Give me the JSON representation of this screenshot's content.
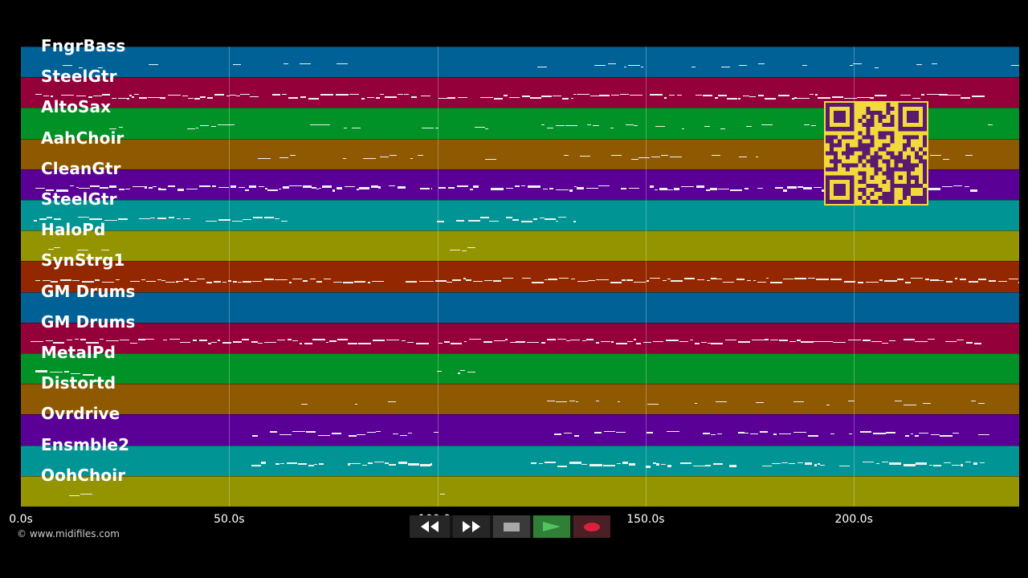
{
  "tracks": [
    {
      "name": "FngrBass",
      "color": "#006196"
    },
    {
      "name": "SteelGtr",
      "color": "#93003a"
    },
    {
      "name": "AltoSax",
      "color": "#009127"
    },
    {
      "name": "AahChoir",
      "color": "#8e5900"
    },
    {
      "name": "CleanGtr",
      "color": "#5a0096"
    },
    {
      "name": "SteelGtr",
      "color": "#009494"
    },
    {
      "name": "HaloPd",
      "color": "#949400"
    },
    {
      "name": "SynStrg1",
      "color": "#932800"
    },
    {
      "name": "GM Drums",
      "color": "#006196"
    },
    {
      "name": "GM Drums",
      "color": "#93003a"
    },
    {
      "name": "MetalPd",
      "color": "#009127"
    },
    {
      "name": "Distortd",
      "color": "#8e5900"
    },
    {
      "name": "Ovrdrive",
      "color": "#5a0096"
    },
    {
      "name": "Ensmble2",
      "color": "#009494"
    },
    {
      "name": "OohChoir",
      "color": "#949400"
    }
  ],
  "timeline": {
    "ticks": [
      "0.0s",
      "50.0s",
      "100.0s",
      "150.0s",
      "200.0s"
    ]
  },
  "transport": {
    "rewind_icon": "rewind-icon",
    "fast_forward_icon": "fast-forward-icon",
    "stop_icon": "stop-icon",
    "play_icon": "play-icon",
    "record_icon": "record-icon",
    "play_color": "#2d9e3a",
    "record_color": "#d9213b"
  },
  "copyright": "© www.midifiles.com"
}
